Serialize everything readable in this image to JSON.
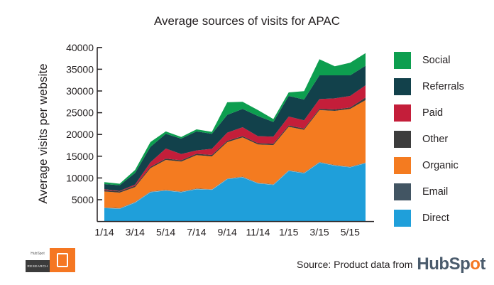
{
  "chart_data": {
    "type": "area",
    "stacked": true,
    "title": "Average sources of visits for APAC",
    "xlabel": "",
    "ylabel": "Average visits per website",
    "ylim": [
      0,
      40000
    ],
    "yticks": [
      5000,
      10000,
      15000,
      20000,
      25000,
      30000,
      35000,
      40000
    ],
    "x": [
      "1/14",
      "2/14",
      "3/14",
      "4/14",
      "5/14",
      "6/14",
      "7/14",
      "8/14",
      "9/14",
      "10/14",
      "11/14",
      "12/14",
      "1/15",
      "2/15",
      "3/15",
      "4/15",
      "5/15",
      "6/15"
    ],
    "xtick_labels": [
      "1/14",
      "3/14",
      "5/14",
      "7/14",
      "9/14",
      "11/14",
      "1/15",
      "3/15",
      "5/15"
    ],
    "grid": false,
    "legend_position": "right",
    "series": [
      {
        "name": "Direct",
        "color": "#1f9fda",
        "values": [
          3150,
          3000,
          4400,
          6800,
          7170,
          6800,
          7500,
          7340,
          9800,
          10230,
          8810,
          8480,
          11700,
          11150,
          13600,
          12900,
          12520,
          13450
        ]
      },
      {
        "name": "Email",
        "color": "#425563",
        "values": [
          80,
          80,
          80,
          80,
          80,
          80,
          80,
          80,
          80,
          80,
          80,
          80,
          80,
          80,
          80,
          80,
          80,
          80
        ]
      },
      {
        "name": "Organic",
        "color": "#f47b20",
        "values": [
          3670,
          3550,
          3420,
          5370,
          6900,
          6890,
          7670,
          7550,
          8360,
          9020,
          8810,
          9000,
          9999,
          9840,
          11920,
          12440,
          13270,
          14370
        ]
      },
      {
        "name": "Other",
        "color": "#3c3c3c",
        "values": [
          300,
          300,
          300,
          300,
          300,
          300,
          300,
          330,
          310,
          300,
          300,
          300,
          300,
          300,
          300,
          330,
          330,
          600
        ]
      },
      {
        "name": "Paid",
        "color": "#c41e3a",
        "values": [
          200,
          100,
          300,
          1050,
          2310,
          1430,
          780,
          1400,
          1870,
          2040,
          1600,
          1640,
          2040,
          1880,
          2250,
          2560,
          2660,
          2800
        ]
      },
      {
        "name": "Referrals",
        "color": "#12414b",
        "values": [
          1200,
          1300,
          2650,
          3550,
          3390,
          3550,
          4370,
          3450,
          4080,
          4200,
          4630,
          3370,
          4740,
          4790,
          5450,
          5290,
          4740,
          4500
        ]
      },
      {
        "name": "Social",
        "color": "#0d9e4f",
        "values": [
          440,
          350,
          700,
          1100,
          550,
          380,
          470,
          450,
          2900,
          1630,
          1370,
          680,
          810,
          1910,
          3700,
          2080,
          2900,
          2900
        ]
      }
    ]
  },
  "legend": [
    {
      "label": "Social",
      "color": "#0d9e4f"
    },
    {
      "label": "Referrals",
      "color": "#12414b"
    },
    {
      "label": "Paid",
      "color": "#c41e3a"
    },
    {
      "label": "Other",
      "color": "#3c3c3c"
    },
    {
      "label": "Organic",
      "color": "#f47b20"
    },
    {
      "label": "Email",
      "color": "#425563"
    },
    {
      "label": "Direct",
      "color": "#1f9fda"
    }
  ],
  "footer": {
    "source_text": "Source: Product data from",
    "brand_prefix": "HubSp",
    "brand_o": "o",
    "brand_suffix": "t",
    "badge_top": "HubSpot",
    "badge_bottom": "RESEARCH"
  }
}
